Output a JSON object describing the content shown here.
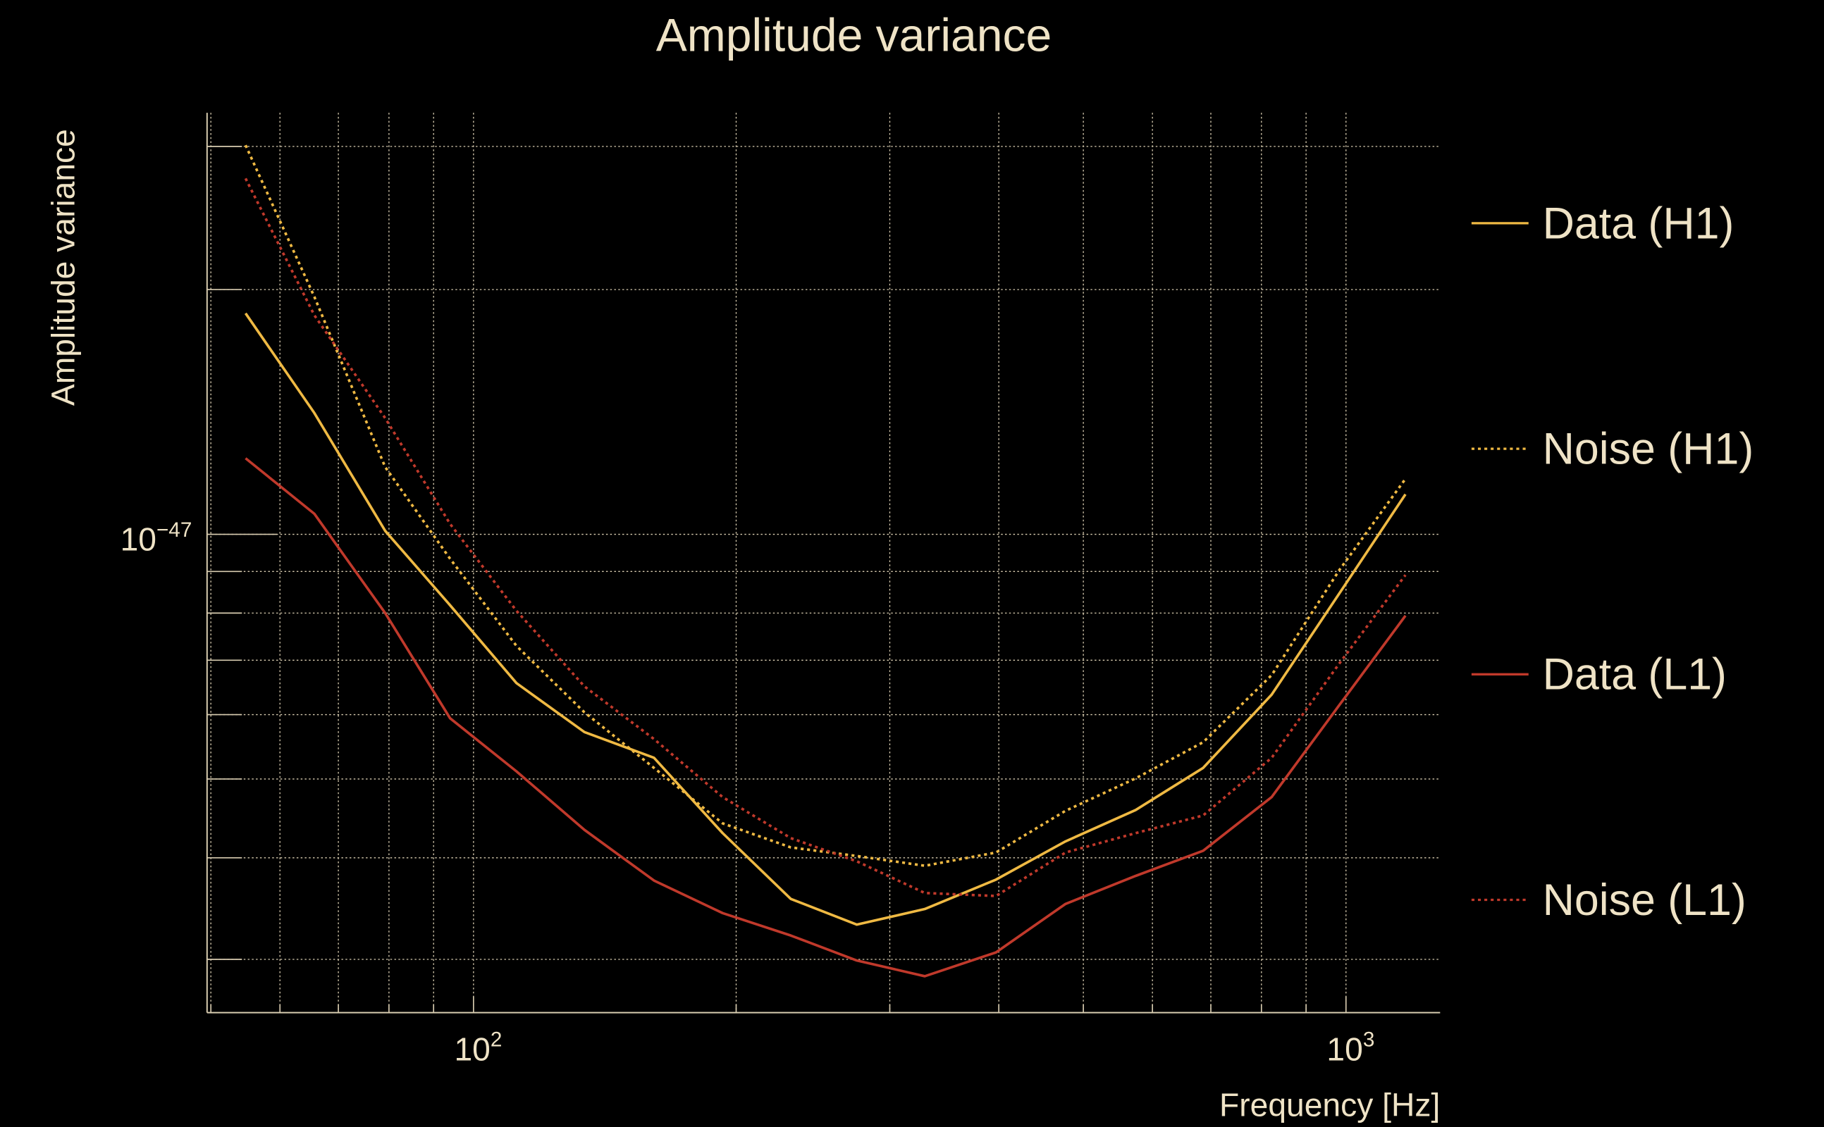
{
  "chart_data": {
    "type": "line",
    "title": "Amplitude variance",
    "xlabel": "Frequency [Hz]",
    "ylabel": "Amplitude variance",
    "xscale": "log",
    "yscale": "log",
    "xlim": [
      49.5,
      1282
    ],
    "ylim": [
      2.58e-48,
      3.3e-47
    ],
    "grid": true,
    "legend_position": "right",
    "x_ticks": [
      {
        "value": 100,
        "label_base": "10",
        "label_exp": "2"
      },
      {
        "value": 1000,
        "label_base": "10",
        "label_exp": "3"
      }
    ],
    "y_ticks": [
      {
        "value": 1e-47,
        "label_base": "10",
        "label_exp": "−47"
      }
    ],
    "x": [
      54.8,
      65.7,
      79.2,
      94.0,
      112,
      134,
      161,
      193,
      231,
      275,
      329,
      397,
      477,
      574,
      686,
      822,
      982,
      1170
    ],
    "series": [
      {
        "name": "Data (H1)",
        "color": "#efb943",
        "style": "solid",
        "values": [
          1.87e-47,
          1.41e-47,
          1.01e-47,
          8.18e-48,
          6.56e-48,
          5.71e-48,
          5.31e-48,
          4.29e-48,
          3.56e-48,
          3.31e-48,
          3.46e-48,
          3.76e-48,
          4.19e-48,
          4.58e-48,
          5.16e-48,
          6.35e-48,
          8.45e-48,
          1.12e-47
        ]
      },
      {
        "name": "Noise (H1)",
        "color": "#efb943",
        "style": "dotted",
        "values": [
          3.01e-47,
          1.96e-47,
          1.21e-47,
          9.33e-48,
          7.29e-48,
          6.04e-48,
          5.16e-48,
          4.41e-48,
          4.12e-48,
          4.02e-48,
          3.91e-48,
          4.06e-48,
          4.57e-48,
          5.01e-48,
          5.55e-48,
          6.71e-48,
          9.03e-48,
          1.17e-47
        ]
      },
      {
        "name": "Data (L1)",
        "color": "#c0392b",
        "style": "solid",
        "values": [
          1.24e-47,
          1.06e-47,
          8e-48,
          5.94e-48,
          5.11e-48,
          4.33e-48,
          3.75e-48,
          3.42e-48,
          3.21e-48,
          2.99e-48,
          2.86e-48,
          3.06e-48,
          3.51e-48,
          3.8e-48,
          4.08e-48,
          4.75e-48,
          6.16e-48,
          7.94e-48
        ]
      },
      {
        "name": "Noise (L1)",
        "color": "#c0392b",
        "style": "dotted",
        "values": [
          2.74e-47,
          1.86e-47,
          1.39e-47,
          1.03e-47,
          8.05e-48,
          6.5e-48,
          5.6e-48,
          4.75e-48,
          4.23e-48,
          3.96e-48,
          3.62e-48,
          3.59e-48,
          4.06e-48,
          4.29e-48,
          4.51e-48,
          5.31e-48,
          6.93e-48,
          8.91e-48
        ]
      }
    ]
  }
}
